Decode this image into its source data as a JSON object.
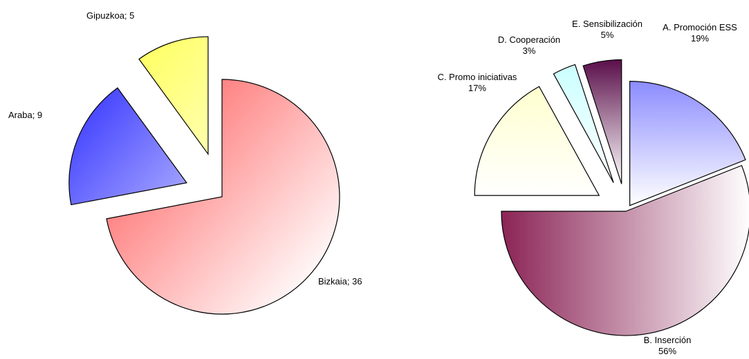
{
  "chart_data": [
    {
      "type": "pie",
      "title": "",
      "start_angle_deg": 0,
      "slices": [
        {
          "label": "Bizkaia; 36",
          "name": "Bizkaia",
          "value": 36,
          "color": "#ff6b6b"
        },
        {
          "label": "Araba; 9",
          "name": "Araba",
          "value": 9,
          "color": "#4a4aff"
        },
        {
          "label": "Gipuzkoa; 5",
          "name": "Gipuzkoa",
          "value": 5,
          "color": "#ffff66"
        }
      ]
    },
    {
      "type": "pie",
      "title": "",
      "start_angle_deg": 0,
      "slices": [
        {
          "label": "A. Promoción ESS",
          "pct_label": "19%",
          "value": 19,
          "color": "#8c8cff"
        },
        {
          "label": "B. Inserción",
          "pct_label": "56%",
          "value": 56,
          "color": "#8b2456"
        },
        {
          "label": "C. Promo iniciativas",
          "pct_label": "17%",
          "value": 17,
          "color": "#ffffc8"
        },
        {
          "label": "D. Cooperación",
          "pct_label": "3%",
          "value": 3,
          "color": "#c8ffff"
        },
        {
          "label": "E. Sensibilización",
          "pct_label": "5%",
          "value": 5,
          "color": "#5a0f4a"
        }
      ]
    }
  ]
}
